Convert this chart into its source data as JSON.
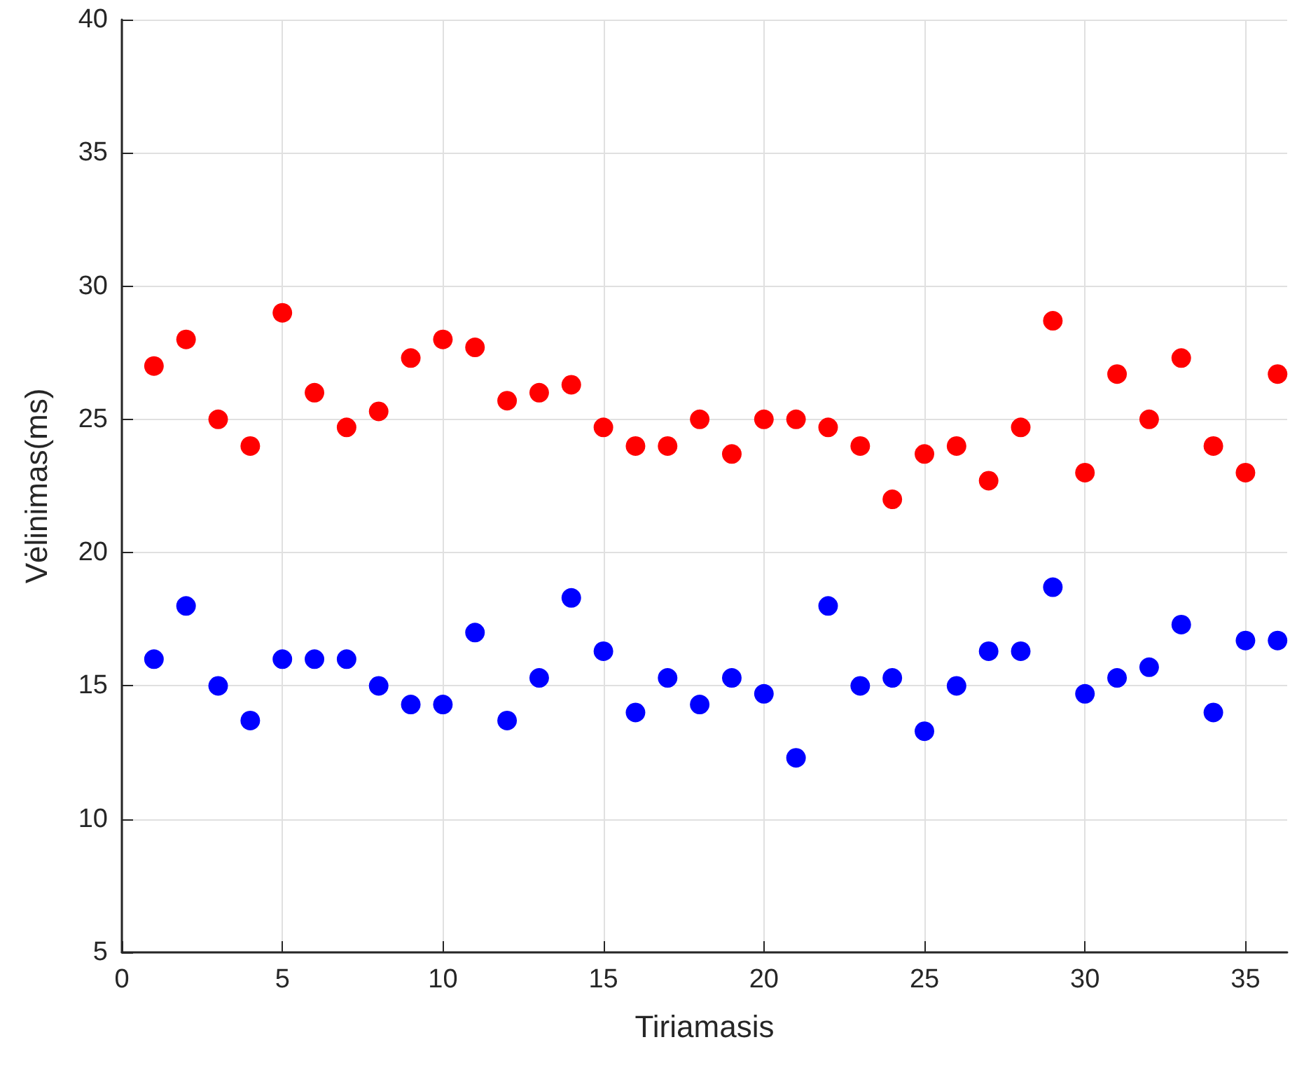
{
  "chart_data": {
    "type": "scatter",
    "xlabel": "Tiriamasis",
    "ylabel": "Vėlinimas(ms)",
    "x": [
      1,
      2,
      3,
      4,
      5,
      6,
      7,
      8,
      9,
      10,
      11,
      12,
      13,
      14,
      15,
      16,
      17,
      18,
      19,
      20,
      21,
      22,
      23,
      24,
      25,
      26,
      27,
      28,
      29,
      30,
      31,
      32,
      33,
      34,
      35,
      36
    ],
    "series": [
      {
        "color": "#ff0000",
        "values": [
          27,
          28,
          25,
          24,
          29,
          26,
          24.7,
          25.3,
          27.3,
          28,
          27.7,
          25.7,
          26,
          26.3,
          24.7,
          24,
          24,
          25,
          23.7,
          25,
          25,
          24.7,
          24,
          22,
          23.7,
          24,
          22.7,
          24.7,
          28.7,
          23,
          26.7,
          25,
          27.3,
          24,
          23,
          26.7
        ]
      },
      {
        "color": "#0000ff",
        "values": [
          16,
          18,
          15,
          13.7,
          16,
          16,
          16,
          15,
          14.3,
          14.3,
          17,
          13.7,
          15.3,
          18.3,
          16.3,
          14,
          15.3,
          14.3,
          15.3,
          14.7,
          12.3,
          18,
          15,
          15.3,
          13.3,
          15,
          16.3,
          16.3,
          18.7,
          14.7,
          15.3,
          15.7,
          17.3,
          14,
          16.7,
          16.7
        ]
      }
    ],
    "xlim": [
      0,
      36.3
    ],
    "xticks": [
      0,
      5,
      10,
      15,
      20,
      25,
      30,
      35
    ],
    "ylim": [
      5,
      40
    ],
    "yticks": [
      5,
      10,
      15,
      20,
      25,
      30,
      35,
      40
    ],
    "grid": true,
    "marker": "circle"
  }
}
